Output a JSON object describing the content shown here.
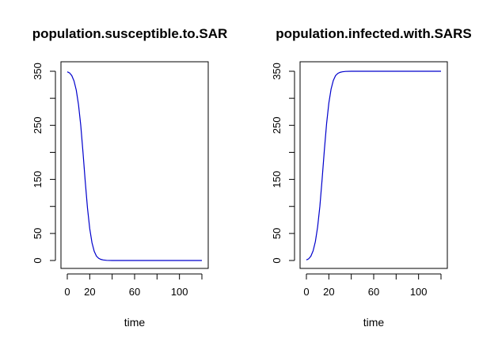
{
  "chart_data": [
    {
      "type": "line",
      "title": "population.susceptible.to.SAR",
      "xlabel": "time",
      "ylabel": "",
      "xlim": [
        0,
        120
      ],
      "ylim": [
        0,
        350
      ],
      "x_ticks": [
        0,
        20,
        40,
        60,
        80,
        100,
        120
      ],
      "x_tick_labels": [
        "0",
        "20",
        "",
        "60",
        "",
        "100",
        ""
      ],
      "y_ticks": [
        0,
        50,
        100,
        150,
        200,
        250,
        300,
        350
      ],
      "y_tick_labels": [
        "0",
        "50",
        "",
        "150",
        "",
        "250",
        "",
        "350"
      ],
      "line_color": "#0000cc",
      "series": [
        {
          "x": [
            0,
            2,
            4,
            6,
            8,
            10,
            12,
            14,
            16,
            18,
            20,
            22,
            24,
            26,
            28,
            30,
            32,
            35,
            40,
            50,
            60,
            80,
            100,
            120
          ],
          "values": [
            349,
            347,
            342,
            332,
            315,
            288,
            250,
            200,
            146,
            97,
            59,
            33,
            17,
            8,
            4,
            2,
            1,
            0.3,
            0,
            0,
            0,
            0,
            0,
            0
          ]
        }
      ]
    },
    {
      "type": "line",
      "title": "population.infected.with.SARS",
      "xlabel": "time",
      "ylabel": "",
      "xlim": [
        0,
        120
      ],
      "ylim": [
        0,
        350
      ],
      "x_ticks": [
        0,
        20,
        40,
        60,
        80,
        100,
        120
      ],
      "x_tick_labels": [
        "0",
        "20",
        "",
        "60",
        "",
        "100",
        ""
      ],
      "y_ticks": [
        0,
        50,
        100,
        150,
        200,
        250,
        300,
        350
      ],
      "y_tick_labels": [
        "0",
        "50",
        "",
        "150",
        "",
        "250",
        "",
        "350"
      ],
      "line_color": "#0000cc",
      "series": [
        {
          "x": [
            0,
            2,
            4,
            6,
            8,
            10,
            12,
            14,
            16,
            18,
            20,
            22,
            24,
            26,
            28,
            30,
            32,
            35,
            40,
            50,
            60,
            80,
            100,
            120
          ],
          "values": [
            1,
            3,
            8,
            18,
            35,
            62,
            100,
            150,
            204,
            253,
            291,
            317,
            333,
            342,
            346,
            348,
            349,
            349.7,
            350,
            350,
            350,
            350,
            350,
            350
          ]
        }
      ]
    }
  ]
}
